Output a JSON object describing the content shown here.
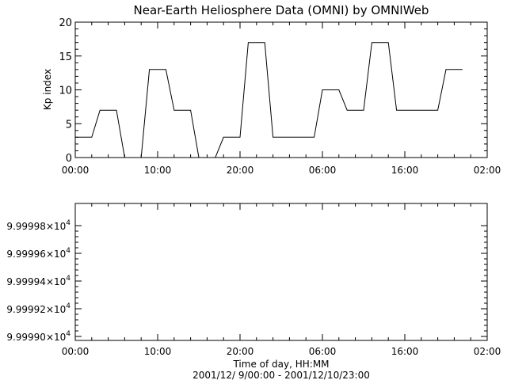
{
  "title": "Near-Earth Heliosphere Data (OMNI) by OMNIWeb",
  "xlabel": "Time of day, HH:MM",
  "date_range": "2001/12/ 9/00:00 - 2001/12/10/23:00",
  "chart_data": [
    {
      "type": "line",
      "ylabel": "Kp index",
      "x_unit": "hours since 2001-12-09 00:00",
      "xlim": [
        0,
        50
      ],
      "ylim": [
        0,
        20
      ],
      "x_ticks": [
        {
          "value": 0,
          "label": "00:00"
        },
        {
          "value": 10,
          "label": "10:00"
        },
        {
          "value": 20,
          "label": "20:00"
        },
        {
          "value": 30,
          "label": "06:00"
        },
        {
          "value": 40,
          "label": "16:00"
        },
        {
          "value": 50,
          "label": "02:00"
        }
      ],
      "y_ticks": [
        {
          "value": 0,
          "label": "0"
        },
        {
          "value": 5,
          "label": "5"
        },
        {
          "value": 10,
          "label": "10"
        },
        {
          "value": 15,
          "label": "15"
        },
        {
          "value": 20,
          "label": "20"
        }
      ],
      "series": [
        {
          "x": [
            0,
            2,
            3,
            5,
            6,
            8,
            9,
            11,
            12,
            14,
            15,
            17,
            18,
            20,
            21,
            23,
            24,
            26,
            27,
            29,
            30,
            32,
            33,
            35,
            36,
            38,
            39,
            41,
            42,
            44,
            45,
            47
          ],
          "y": [
            3,
            3,
            7,
            7,
            0,
            0,
            13,
            13,
            7,
            7,
            0,
            0,
            3,
            3,
            17,
            17,
            3,
            3,
            3,
            3,
            10,
            10,
            7,
            7,
            17,
            17,
            7,
            7,
            7,
            7,
            13,
            13
          ]
        }
      ]
    },
    {
      "type": "line",
      "ylabel": "",
      "x_unit": "hours since 2001-12-09 00:00",
      "xlim": [
        0,
        50
      ],
      "y_ticks": [
        {
          "mantissa": "9.99998",
          "exp": "4"
        },
        {
          "mantissa": "9.99996",
          "exp": "4"
        },
        {
          "mantissa": "9.99994",
          "exp": "4"
        },
        {
          "mantissa": "9.99992",
          "exp": "4"
        },
        {
          "mantissa": "9.99990",
          "exp": "4"
        }
      ],
      "x_ticks": [
        {
          "value": 0,
          "label": "00:00"
        },
        {
          "value": 10,
          "label": "10:00"
        },
        {
          "value": 20,
          "label": "20:00"
        },
        {
          "value": 30,
          "label": "06:00"
        },
        {
          "value": 40,
          "label": "16:00"
        },
        {
          "value": 50,
          "label": "02:00"
        }
      ],
      "series": []
    }
  ]
}
